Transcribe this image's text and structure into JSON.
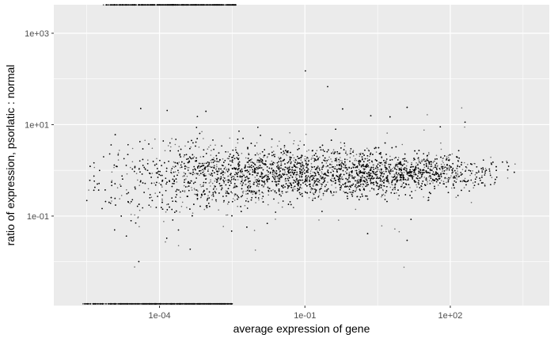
{
  "chart_data": {
    "type": "scatter",
    "title": "",
    "xlabel": "average expression of gene",
    "ylabel": "ratio of expression, psorlatic : normal",
    "x_scale": "log10",
    "y_scale": "log10",
    "xlim": [
      6.6e-07,
      11000.0
    ],
    "ylim": [
      0.0011,
      4200.0
    ],
    "x_ticks": [
      {
        "value": 0.0001,
        "label": "1e-04"
      },
      {
        "value": 0.1,
        "label": "1e-01"
      },
      {
        "value": 100.0,
        "label": "1e+02"
      }
    ],
    "y_ticks": [
      {
        "value": 0.1,
        "label": "1e-01"
      },
      {
        "value": 10.0,
        "label": "1e+01"
      },
      {
        "value": 1000.0,
        "label": "1e+03"
      }
    ],
    "grid": true,
    "legend": "none",
    "point_color": "#000000",
    "panel_color": "#ebebeb",
    "grid_color": "#ffffff",
    "series": [
      {
        "description_free": true,
        "density_profile": [
          {
            "log_x": -5.5,
            "log_y_center": -0.25,
            "log_y_spread": 0.45,
            "weight": 0.2
          },
          {
            "log_x": -4.5,
            "log_y_center": -0.2,
            "log_y_spread": 0.5,
            "weight": 0.7
          },
          {
            "log_x": -3.6,
            "log_y_center": -0.15,
            "log_y_spread": 0.45,
            "weight": 1.4
          },
          {
            "log_x": -3.0,
            "log_y_center": -0.12,
            "log_y_spread": 0.35,
            "weight": 2.2
          },
          {
            "log_x": -2.0,
            "log_y_center": -0.1,
            "log_y_spread": 0.3,
            "weight": 2.6
          },
          {
            "log_x": -1.0,
            "log_y_center": -0.08,
            "log_y_spread": 0.27,
            "weight": 2.8
          },
          {
            "log_x": 0.0,
            "log_y_center": -0.07,
            "log_y_spread": 0.25,
            "weight": 2.8
          },
          {
            "log_x": 1.0,
            "log_y_center": -0.06,
            "log_y_spread": 0.23,
            "weight": 2.5
          },
          {
            "log_x": 2.0,
            "log_y_center": -0.05,
            "log_y_spread": 0.2,
            "weight": 1.6
          },
          {
            "log_x": 2.7,
            "log_y_center": -0.05,
            "log_y_spread": 0.18,
            "weight": 0.4
          },
          {
            "log_x": 3.4,
            "log_y_center": 0.0,
            "log_y_spread": 0.15,
            "weight": 0.05
          }
        ],
        "censored_top": {
          "log_x_range": [
            -5.2,
            -2.4
          ],
          "log_y": 3.62
        },
        "censored_bottom": {
          "log_x_range": [
            -5.6,
            -2.5
          ],
          "log_y": -2.92
        }
      }
    ]
  }
}
